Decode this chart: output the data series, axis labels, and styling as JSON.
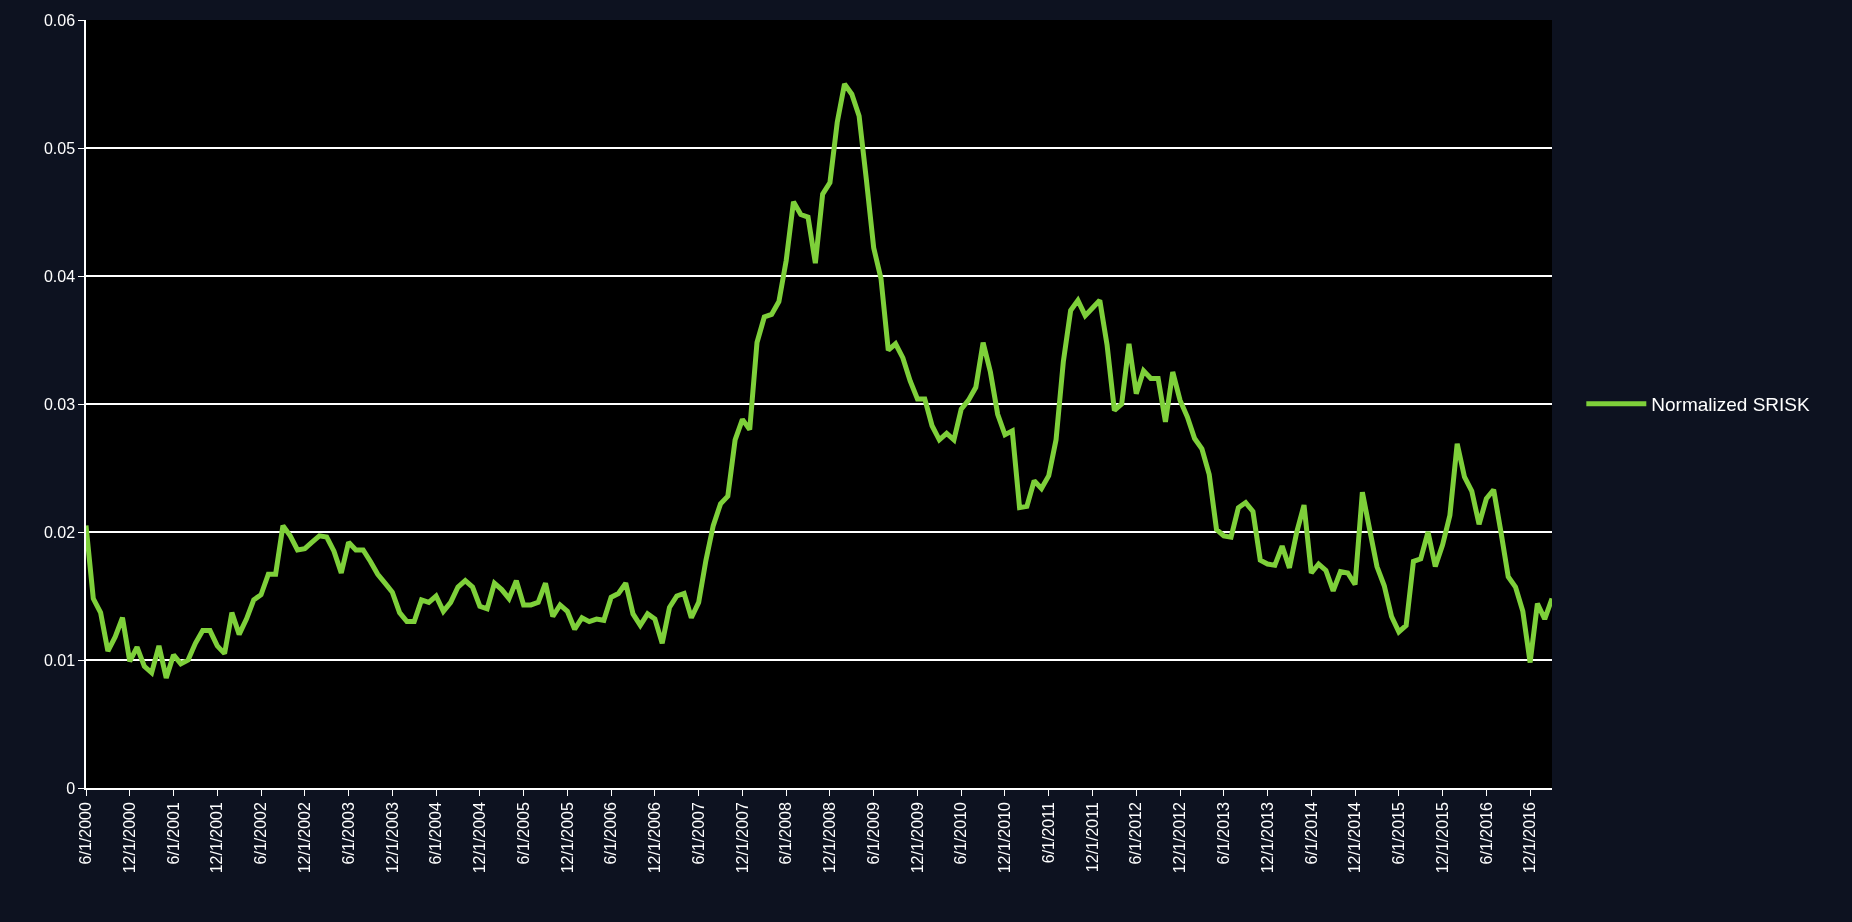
{
  "chart_data": {
    "type": "line",
    "categories": [
      "6/1/2000",
      null,
      null,
      null,
      null,
      null,
      "12/1/2000",
      null,
      null,
      null,
      null,
      null,
      "6/1/2001",
      null,
      null,
      null,
      null,
      null,
      "12/1/2001",
      null,
      null,
      null,
      null,
      null,
      "6/1/2002",
      null,
      null,
      null,
      null,
      null,
      "12/1/2002",
      null,
      null,
      null,
      null,
      null,
      "6/1/2003",
      null,
      null,
      null,
      null,
      null,
      "12/1/2003",
      null,
      null,
      null,
      null,
      null,
      "6/1/2004",
      null,
      null,
      null,
      null,
      null,
      "12/1/2004",
      null,
      null,
      null,
      null,
      null,
      "6/1/2005",
      null,
      null,
      null,
      null,
      null,
      "12/1/2005",
      null,
      null,
      null,
      null,
      null,
      "6/1/2006",
      null,
      null,
      null,
      null,
      null,
      "12/1/2006",
      null,
      null,
      null,
      null,
      null,
      "6/1/2007",
      null,
      null,
      null,
      null,
      null,
      "12/1/2007",
      null,
      null,
      null,
      null,
      null,
      "6/1/2008",
      null,
      null,
      null,
      null,
      null,
      "12/1/2008",
      null,
      null,
      null,
      null,
      null,
      "6/1/2009",
      null,
      null,
      null,
      null,
      null,
      "12/1/2009",
      null,
      null,
      null,
      null,
      null,
      "6/1/2010",
      null,
      null,
      null,
      null,
      null,
      "12/1/2010",
      null,
      null,
      null,
      null,
      null,
      "6/1/2011",
      null,
      null,
      null,
      null,
      null,
      "12/1/2011",
      null,
      null,
      null,
      null,
      null,
      "6/1/2012",
      null,
      null,
      null,
      null,
      null,
      "12/1/2012",
      null,
      null,
      null,
      null,
      null,
      "6/1/2013",
      null,
      null,
      null,
      null,
      null,
      "12/1/2013",
      null,
      null,
      null,
      null,
      null,
      "6/1/2014",
      null,
      null,
      null,
      null,
      null,
      "12/1/2014",
      null,
      null,
      null,
      null,
      null,
      "6/1/2015",
      null,
      null,
      null,
      null,
      null,
      "12/1/2015",
      null,
      null,
      null,
      null,
      null,
      "6/1/2016",
      null,
      null,
      null,
      null,
      null,
      "12/1/2016",
      null,
      null,
      null
    ],
    "series": [
      {
        "name": "Normalized SRISK",
        "color": "#7ed03a",
        "values": [
          0.0205,
          0.0148,
          0.0137,
          0.0107,
          0.0118,
          0.0133,
          0.0099,
          0.011,
          0.0095,
          0.009,
          0.0111,
          0.0086,
          0.0104,
          0.0097,
          0.01,
          0.0113,
          0.0123,
          0.0123,
          0.0111,
          0.0105,
          0.0137,
          0.012,
          0.0132,
          0.0147,
          0.0151,
          0.0167,
          0.0167,
          0.0205,
          0.0197,
          0.0186,
          0.0187,
          0.0192,
          0.0197,
          0.0196,
          0.0185,
          0.0168,
          0.0192,
          0.0186,
          0.0186,
          0.0177,
          0.0167,
          0.016,
          0.0153,
          0.0137,
          0.013,
          0.013,
          0.0147,
          0.0145,
          0.015,
          0.0138,
          0.0145,
          0.0157,
          0.0162,
          0.0157,
          0.0142,
          0.014,
          0.016,
          0.0155,
          0.0148,
          0.0162,
          0.0143,
          0.0143,
          0.0145,
          0.016,
          0.0134,
          0.0143,
          0.0138,
          0.0124,
          0.0133,
          0.013,
          0.0132,
          0.0131,
          0.0149,
          0.0152,
          0.016,
          0.0136,
          0.0127,
          0.0136,
          0.0132,
          0.0113,
          0.0141,
          0.015,
          0.0152,
          0.0133,
          0.0145,
          0.0178,
          0.0205,
          0.0222,
          0.0228,
          0.0272,
          0.0288,
          0.028,
          0.0348,
          0.0368,
          0.037,
          0.038,
          0.0412,
          0.0458,
          0.0448,
          0.0446,
          0.041,
          0.0464,
          0.0473,
          0.052,
          0.055,
          0.0542,
          0.0525,
          0.0475,
          0.0422,
          0.0398,
          0.0342,
          0.0347,
          0.0336,
          0.0318,
          0.0304,
          0.0304,
          0.0283,
          0.0272,
          0.0277,
          0.0272,
          0.0296,
          0.0303,
          0.0313,
          0.0348,
          0.0325,
          0.0292,
          0.0276,
          0.0279,
          0.0219,
          0.022,
          0.024,
          0.0234,
          0.0244,
          0.0272,
          0.0333,
          0.0373,
          0.0381,
          0.0369,
          0.0375,
          0.0381,
          0.0346,
          0.0295,
          0.03,
          0.0347,
          0.0308,
          0.0326,
          0.032,
          0.032,
          0.0286,
          0.0325,
          0.0303,
          0.029,
          0.0273,
          0.0265,
          0.0245,
          0.0202,
          0.0197,
          0.0196,
          0.0219,
          0.0223,
          0.0216,
          0.0178,
          0.0175,
          0.0174,
          0.0189,
          0.0172,
          0.02,
          0.0221,
          0.0168,
          0.0175,
          0.017,
          0.0154,
          0.0169,
          0.0168,
          0.0159,
          0.0231,
          0.0202,
          0.0173,
          0.0158,
          0.0134,
          0.0122,
          0.0127,
          0.0177,
          0.0179,
          0.02,
          0.0173,
          0.019,
          0.0213,
          0.0269,
          0.0243,
          0.0232,
          0.0206,
          0.0226,
          0.0233,
          0.02,
          0.0165,
          0.0157,
          0.0138,
          0.0098,
          0.0144,
          0.0132,
          0.0148
        ]
      }
    ],
    "ylim": [
      0,
      0.06
    ],
    "yticks": [
      0,
      0.01,
      0.02,
      0.03,
      0.04,
      0.05,
      0.06
    ],
    "grid": "y",
    "legend": "right",
    "marker": "none",
    "line_style": "solid"
  }
}
